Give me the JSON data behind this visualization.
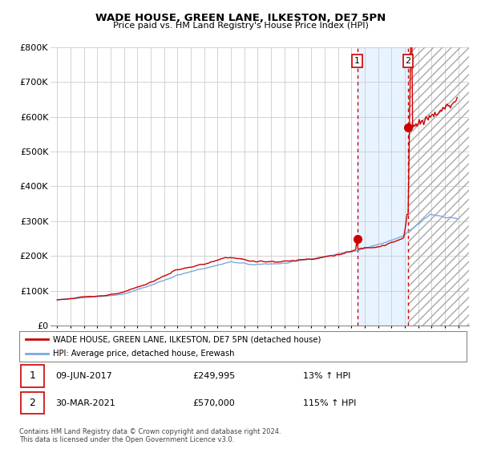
{
  "title": "WADE HOUSE, GREEN LANE, ILKESTON, DE7 5PN",
  "subtitle": "Price paid vs. HM Land Registry's House Price Index (HPI)",
  "legend_label_red": "WADE HOUSE, GREEN LANE, ILKESTON, DE7 5PN (detached house)",
  "legend_label_blue": "HPI: Average price, detached house, Erewash",
  "transaction1_date": "09-JUN-2017",
  "transaction1_price": "£249,995",
  "transaction1_hpi": "13% ↑ HPI",
  "transaction2_date": "30-MAR-2021",
  "transaction2_price": "£570,000",
  "transaction2_hpi": "115% ↑ HPI",
  "footnote": "Contains HM Land Registry data © Crown copyright and database right 2024.\nThis data is licensed under the Open Government Licence v3.0.",
  "red_color": "#cc0000",
  "blue_color": "#7aaadd",
  "dotted_line_color": "#cc0000",
  "shaded_color": "#ddeeff",
  "ylim": [
    0,
    800000
  ],
  "ytick_vals": [
    0,
    100000,
    200000,
    300000,
    400000,
    500000,
    600000,
    700000,
    800000
  ],
  "ytick_labels": [
    "£0",
    "£100K",
    "£200K",
    "£300K",
    "£400K",
    "£500K",
    "£600K",
    "£700K",
    "£800K"
  ],
  "vline1_x": 2017.44,
  "vline2_x": 2021.25,
  "marker1_x": 2017.44,
  "marker1_y": 249995,
  "marker2_x": 2021.25,
  "marker2_y": 570000,
  "xmin": 1994.5,
  "xmax": 2025.8
}
